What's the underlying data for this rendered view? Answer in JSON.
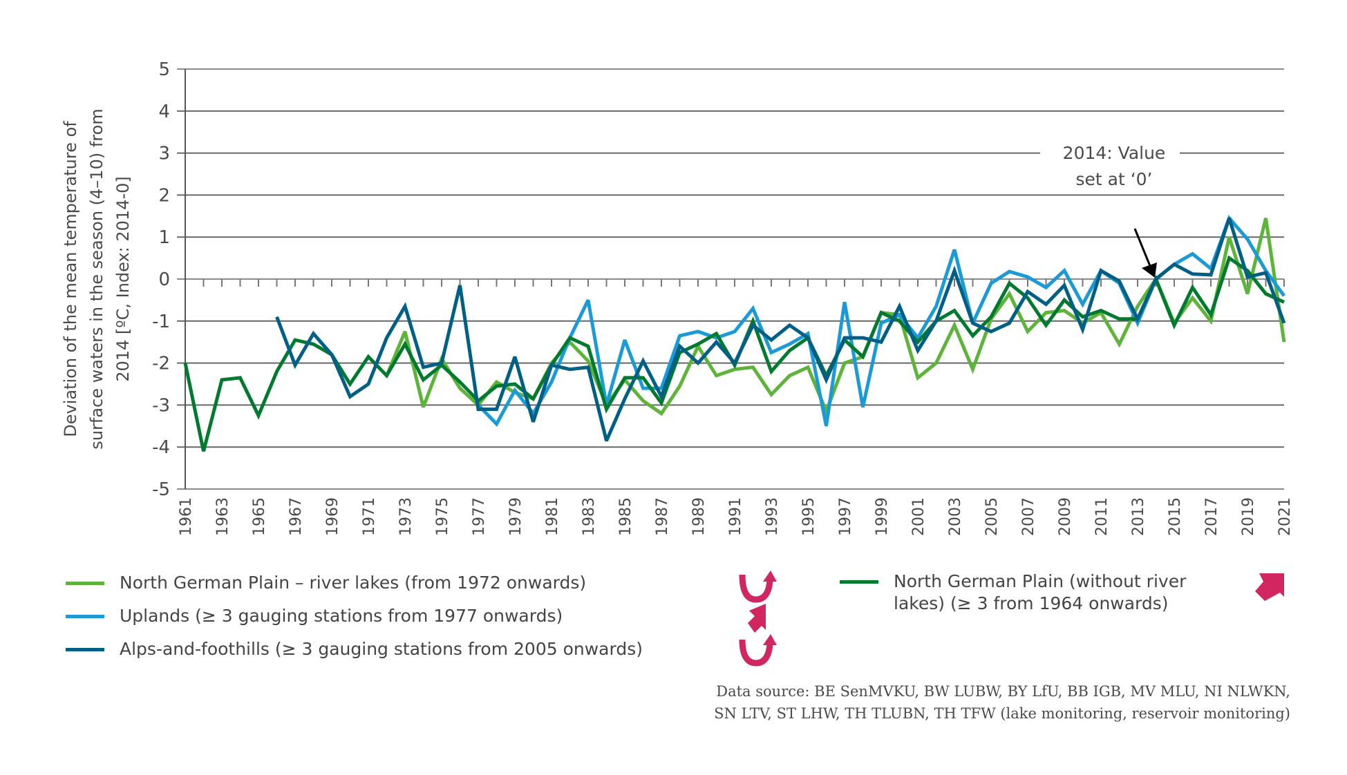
{
  "chart_data": {
    "type": "line",
    "title": "",
    "ylabel": "Deviation of the mean temperature of surface waters in the season (4–10) from 2014 [°C, Index: 2014-0]",
    "ylabel_lines": [
      "Deviation of the mean temperature of",
      "surface waters in the season (4–10) from",
      "2014 [ºC, Index: 2014-0]"
    ],
    "xlabel": "",
    "ylim": [
      -5,
      5
    ],
    "xlim": [
      1961,
      2021
    ],
    "yticks": [
      "5",
      "4",
      "3",
      "2",
      "1",
      "0",
      "-1",
      "-2",
      "-3",
      "-4",
      "-5"
    ],
    "ytick_values": [
      5,
      4,
      3,
      2,
      1,
      0,
      -1,
      -2,
      -3,
      -4,
      -5
    ],
    "xticks": [
      "1961",
      "1963",
      "1965",
      "1967",
      "1969",
      "1971",
      "1973",
      "1975",
      "1977",
      "1979",
      "1981",
      "1983",
      "1985",
      "1987",
      "1989",
      "1991",
      "1993",
      "1995",
      "1997",
      "1999",
      "2001",
      "2003",
      "2005",
      "2007",
      "2009",
      "2011",
      "2013",
      "2015",
      "2017",
      "2019",
      "2021"
    ],
    "grid": true,
    "legend_position": "bottom",
    "annotation": {
      "lines": [
        "2014: Value",
        "set at ‘0’"
      ],
      "year": 2014,
      "value": 0
    },
    "series": [
      {
        "name": "North German Plain (without river lakes) (≥ 3 from 1964 onwards)",
        "color": "#007a2e",
        "start_year": 1961,
        "values": [
          -2.0,
          -4.1,
          -2.4,
          -2.35,
          -3.25,
          -2.2,
          -1.45,
          -1.55,
          -1.8,
          -2.5,
          -1.85,
          -2.3,
          -1.55,
          -2.4,
          -2.05,
          -2.45,
          -2.9,
          -2.55,
          -2.5,
          -2.85,
          -2.05,
          -1.4,
          -1.6,
          -3.1,
          -2.35,
          -2.35,
          -2.95,
          -1.75,
          -1.55,
          -1.3,
          -2.05,
          -1.0,
          -2.2,
          -1.7,
          -1.4,
          -2.3,
          -1.45,
          -1.85,
          -0.8,
          -1.0,
          -1.5,
          -1.0,
          -0.75,
          -1.35,
          -0.9,
          -0.1,
          -0.45,
          -1.1,
          -0.5,
          -0.9,
          -0.75,
          -0.95,
          -0.95,
          0.0,
          -1.1,
          -0.2,
          -0.85,
          0.5,
          0.2,
          -0.35,
          -0.55
        ]
      },
      {
        "name": "North German Plain – river lakes (from 1972 onwards)",
        "color": "#5eb43a",
        "start_year": 1972,
        "values": [
          -2.3,
          -1.25,
          -3.05,
          -1.9,
          -2.6,
          -3.0,
          -2.45,
          -2.7,
          -2.85,
          -2.0,
          -1.5,
          -1.95,
          -3.0,
          -2.4,
          -2.9,
          -3.2,
          -2.55,
          -1.6,
          -2.3,
          -2.15,
          -2.1,
          -2.75,
          -2.3,
          -2.1,
          -3.15,
          -2.0,
          -1.85,
          -0.8,
          -0.85,
          -2.35,
          -2.0,
          -1.1,
          -2.15,
          -0.95,
          -0.35,
          -1.25,
          -0.8,
          -0.75,
          -1.05,
          -0.8,
          -1.55,
          -0.65,
          0.0,
          -1.05,
          -0.45,
          -1.0,
          1.0,
          -0.35,
          1.45,
          -1.5
        ]
      },
      {
        "name": "Uplands (≥ 3 gauging stations from 1977 onwards)",
        "color": "#1a9ad6",
        "start_year": 1977,
        "values": [
          -3.0,
          -3.45,
          -2.65,
          -3.2,
          -2.45,
          -1.4,
          -0.5,
          -3.0,
          -1.45,
          -2.6,
          -2.6,
          -1.35,
          -1.25,
          -1.4,
          -1.25,
          -0.7,
          -1.75,
          -1.55,
          -1.3,
          -3.5,
          -0.55,
          -3.05,
          -1.05,
          -0.85,
          -1.4,
          -0.65,
          0.7,
          -1.05,
          -0.1,
          0.18,
          0.05,
          -0.2,
          0.2,
          -0.6,
          0.2,
          -0.1,
          -1.05,
          0.0,
          0.35,
          0.6,
          0.25,
          1.45,
          0.95,
          0.2,
          -0.4
        ]
      },
      {
        "name": "Alps-and-foothills (≥ 3 gauging stations from 2005 onwards)",
        "color": "#005f85",
        "start_year": 1966,
        "values": [
          -0.9,
          -2.05,
          -1.3,
          -1.8,
          -2.8,
          -2.5,
          -1.4,
          -0.65,
          -2.1,
          -2.0,
          -0.15,
          -3.1,
          -3.1,
          -1.85,
          -3.4,
          -2.05,
          -2.15,
          -2.1,
          -3.85,
          -2.85,
          -1.95,
          -2.8,
          -1.6,
          -2.0,
          -1.5,
          -2.0,
          -1.1,
          -1.45,
          -1.1,
          -1.4,
          -2.4,
          -1.4,
          -1.4,
          -1.5,
          -0.65,
          -1.7,
          -1.0,
          0.2,
          -1.05,
          -1.25,
          -1.05,
          -0.3,
          -0.6,
          -0.15,
          -1.2,
          0.2,
          -0.05,
          -0.95,
          0.0,
          0.35,
          0.12,
          0.1,
          1.45,
          0.05,
          0.15,
          -1.05
        ]
      }
    ]
  },
  "legend": {
    "items": [
      {
        "label": "North German Plain – river lakes (from 1972 onwards)",
        "color": "#5eb43a",
        "trend": "trend-reversal-up-icon"
      },
      {
        "label": "Uplands (≥ 3 gauging stations from 1977 onwards)",
        "color": "#1a9ad6",
        "trend": "rising-trend-icon"
      },
      {
        "label": "Alps-and-foothills (≥ 3 gauging stations from 2005 onwards)",
        "color": "#005f85",
        "trend": "trend-reversal-up-icon"
      },
      {
        "label_line1": "North German Plain (without river",
        "label_line2": "lakes) (≥ 3 from 1964 onwards)",
        "color": "#007a2e",
        "trend": "rising-trend-icon"
      }
    ],
    "trend_color": "#d1265f"
  },
  "source": {
    "line1": "Data source: BE SenMVKU, BW LUBW, BY LfU, BB IGB, MV MLU, NI NLWKN,",
    "line2": "SN LTV, ST LHW, TH TLUBN, TH TFW (lake monitoring, reservoir monitoring)"
  }
}
